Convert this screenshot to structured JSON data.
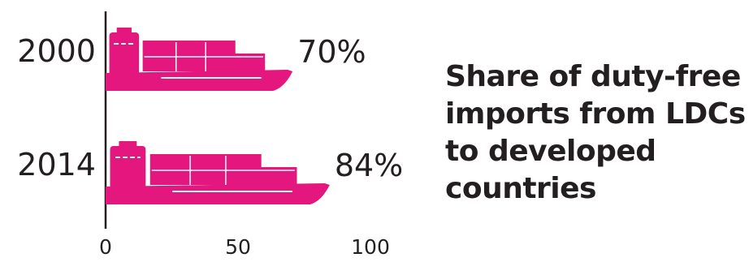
{
  "chart_data": {
    "type": "bar",
    "categories": [
      "2000",
      "2014"
    ],
    "values": [
      70,
      84
    ],
    "value_labels": [
      "70%",
      "84%"
    ],
    "title": "Share of duty-free imports from LDCs to developed countries",
    "xlim": [
      0,
      100
    ],
    "x_ticks": [
      0,
      50,
      100
    ],
    "x_tick_labels": [
      "0",
      "50",
      "100"
    ],
    "orientation": "horizontal",
    "bar_style": "ship pictogram",
    "grid": false,
    "colors": {
      "bar": "#e4177f",
      "axis": "#231f20",
      "text": "#231f20"
    }
  }
}
